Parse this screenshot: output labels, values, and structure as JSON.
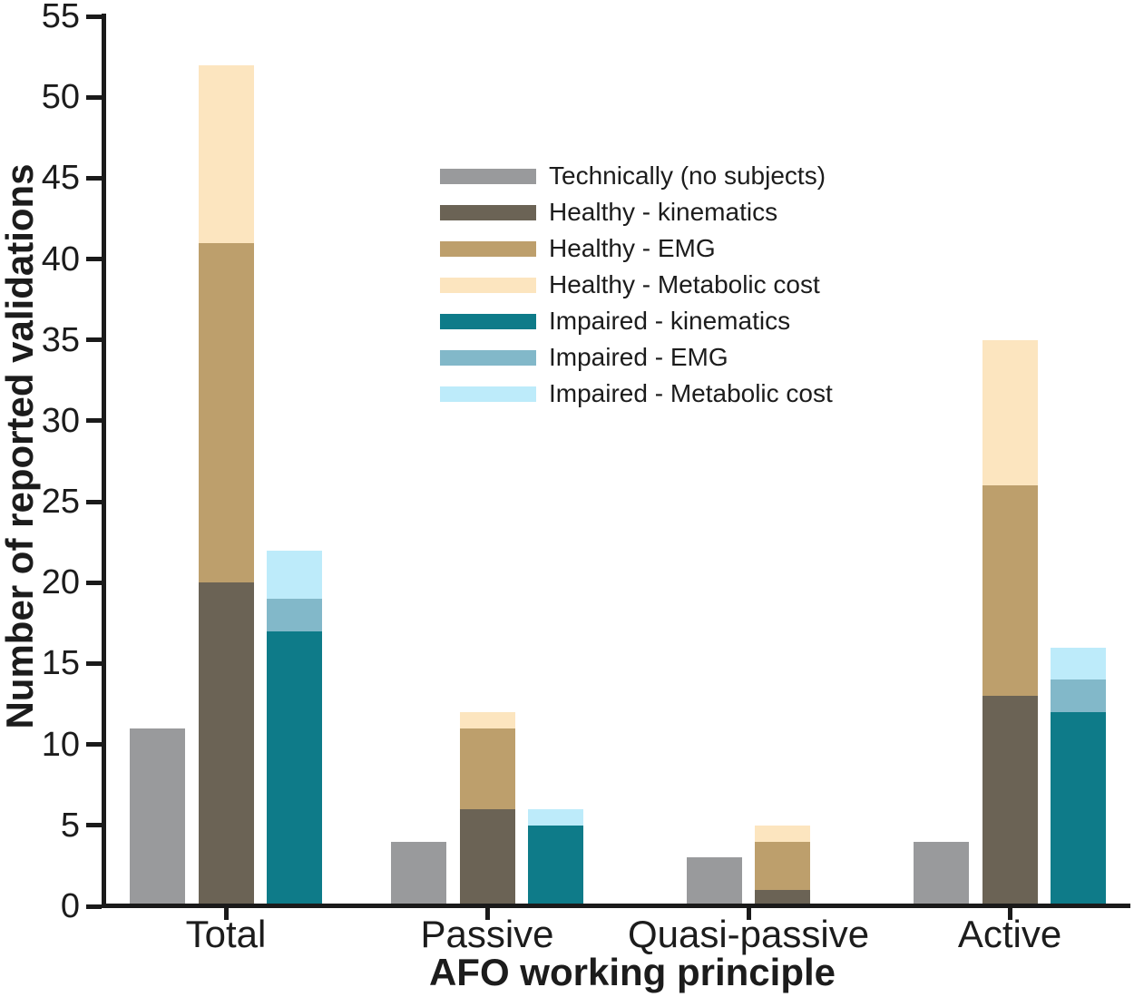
{
  "figure": {
    "xlabel": "AFO working principle",
    "ylabel": "Number of reported validations"
  },
  "chart_data": {
    "type": "bar",
    "stacked": true,
    "grouped": true,
    "title": "",
    "xlabel": "AFO working principle",
    "ylabel": "Number of reported validations",
    "ylim": [
      0,
      55
    ],
    "ytick_step": 5,
    "yticks": [
      0,
      5,
      10,
      15,
      20,
      25,
      30,
      35,
      40,
      45,
      50,
      55
    ],
    "grid": false,
    "legend_position": "inside-upper-center-left",
    "axis_color": "#1a1a1a",
    "text_color": "#1c1c1c",
    "categories": [
      "Total",
      "Passive",
      "Quasi-passive",
      "Active"
    ],
    "bar_groups": [
      "technical",
      "healthy",
      "impaired"
    ],
    "series": [
      {
        "name": "Technically (no subjects)",
        "bar": "technical",
        "color": "#999a9c",
        "values": [
          11,
          4,
          3,
          4
        ]
      },
      {
        "name": "Healthy - kinematics",
        "bar": "healthy",
        "color": "#6b6355",
        "values": [
          20,
          6,
          1,
          13
        ]
      },
      {
        "name": "Healthy - EMG",
        "bar": "healthy",
        "color": "#bd9f6c",
        "values": [
          21,
          5,
          3,
          13
        ]
      },
      {
        "name": "Healthy - Metabolic cost",
        "bar": "healthy",
        "color": "#fce5bf",
        "values": [
          11,
          1,
          1,
          9
        ]
      },
      {
        "name": "Impaired - kinematics",
        "bar": "impaired",
        "color": "#0e7b89",
        "values": [
          17,
          5,
          0,
          12
        ]
      },
      {
        "name": "Impaired - EMG",
        "bar": "impaired",
        "color": "#82b8c9",
        "values": [
          2,
          0,
          0,
          2
        ]
      },
      {
        "name": "Impaired - Metabolic cost",
        "bar": "impaired",
        "color": "#bdebfa",
        "values": [
          3,
          1,
          0,
          2
        ]
      }
    ],
    "stack_tops": {
      "technical": [
        11,
        4,
        3,
        4
      ],
      "healthy": [
        52,
        12,
        5,
        35
      ],
      "impaired": [
        22,
        6,
        0,
        16
      ]
    }
  }
}
